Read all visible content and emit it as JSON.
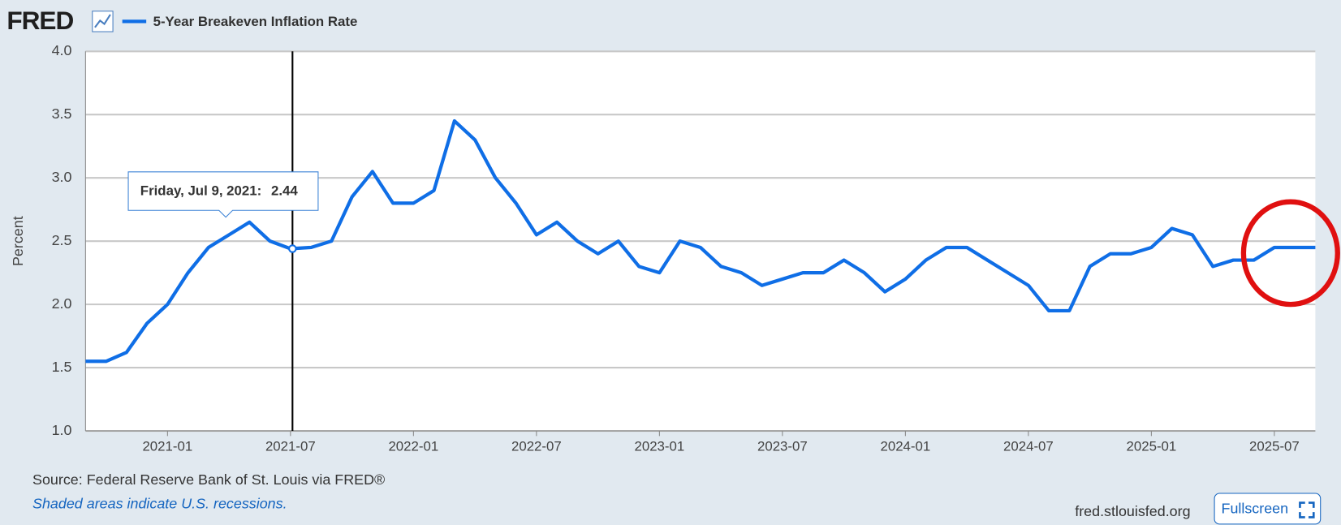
{
  "chart_data": {
    "type": "line",
    "logo": "FRED",
    "y_label": "Percent",
    "source": "Source: Federal Reserve Bank of St. Louis via FRED®",
    "note": "Shaded areas indicate U.S. recessions.",
    "site": "fred.stlouisfed.org",
    "button": "Fullscreen",
    "grid": true,
    "xlim": [
      "2020-09",
      "2025-09"
    ],
    "xticks": [
      "2021-01",
      "2021-07",
      "2022-01",
      "2022-07",
      "2023-01",
      "2023-07",
      "2024-01",
      "2024-07",
      "2025-01",
      "2025-07"
    ],
    "ylim": [
      1,
      4
    ],
    "yticks": [
      {
        "value": 1,
        "label": "1.0"
      },
      1.5,
      {
        "value": 2,
        "label": "2.0"
      },
      2.5,
      {
        "value": 3,
        "label": "3.0"
      },
      3.5,
      {
        "value": 4,
        "label": "4.0"
      }
    ],
    "x": [
      "2020-09",
      "2020-10",
      "2020-11",
      "2020-12",
      "2021-01",
      "2021-02",
      "2021-03",
      "2021-04",
      "2021-05",
      "2021-06",
      "2021-07",
      "2021-08",
      "2021-09",
      "2021-10",
      "2021-11",
      "2021-12",
      "2022-01",
      "2022-02",
      "2022-03",
      "2022-04",
      "2022-05",
      "2022-06",
      "2022-07",
      "2022-08",
      "2022-09",
      "2022-10",
      "2022-11",
      "2022-12",
      "2023-01",
      "2023-02",
      "2023-03",
      "2023-04",
      "2023-05",
      "2023-06",
      "2023-07",
      "2023-08",
      "2023-09",
      "2023-10",
      "2023-11",
      "2023-12",
      "2024-01",
      "2024-02",
      "2024-03",
      "2024-04",
      "2024-05",
      "2024-06",
      "2024-07",
      "2024-08",
      "2024-09",
      "2024-10",
      "2024-11",
      "2024-12",
      "2025-01",
      "2025-02",
      "2025-03",
      "2025-04",
      "2025-05",
      "2025-06",
      "2025-07",
      "2025-08",
      "2025-09"
    ],
    "series": [
      {
        "name": "5-Year Breakeven Inflation Rate",
        "color": "#0f6ee6",
        "values": [
          1.55,
          1.55,
          1.62,
          1.85,
          2.0,
          2.25,
          2.45,
          2.55,
          2.65,
          2.5,
          2.44,
          2.45,
          2.5,
          2.85,
          3.05,
          2.8,
          2.8,
          2.9,
          3.45,
          3.3,
          3.0,
          2.8,
          2.55,
          2.65,
          2.5,
          2.4,
          2.5,
          2.3,
          2.25,
          2.5,
          2.45,
          2.3,
          2.25,
          2.15,
          2.2,
          2.25,
          2.25,
          2.35,
          2.25,
          2.1,
          2.2,
          2.35,
          2.45,
          2.45,
          2.35,
          2.25,
          2.15,
          1.95,
          1.95,
          2.3,
          2.4,
          2.4,
          2.45,
          2.6,
          2.55,
          2.3,
          2.35,
          2.35,
          2.45,
          2.45,
          2.45
        ]
      }
    ],
    "tooltip": {
      "date": "Friday, Jul 9, 2021:",
      "value": 2.44
    }
  }
}
